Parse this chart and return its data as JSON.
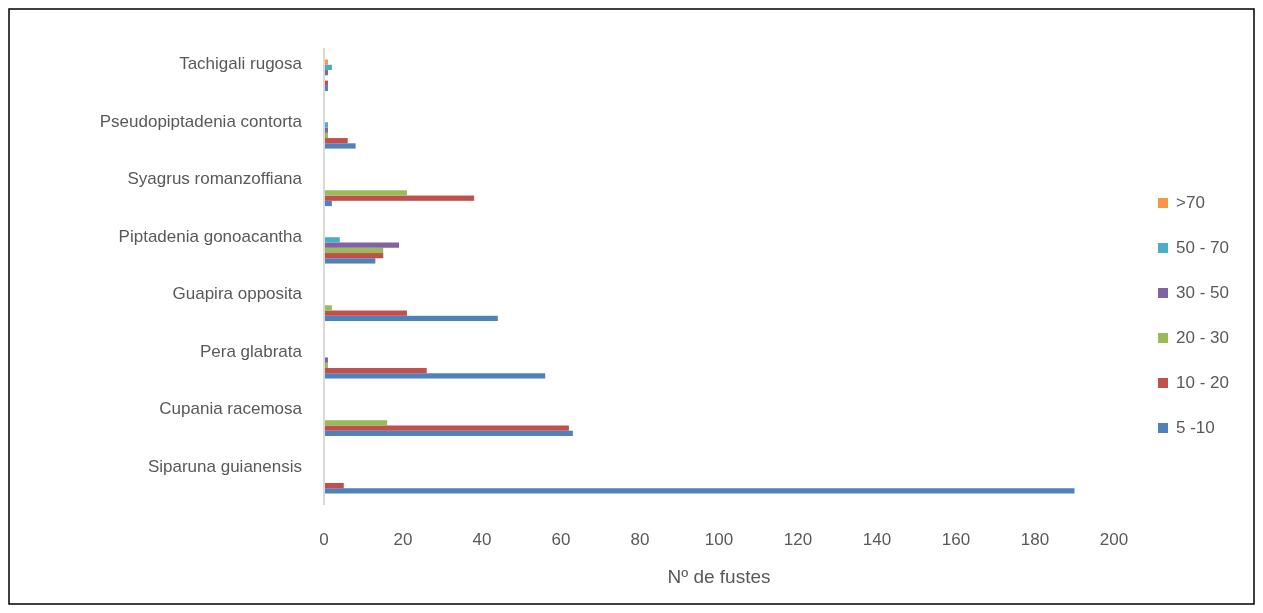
{
  "chart_data": {
    "type": "bar",
    "orientation": "horizontal",
    "xlabel": "Nº de fustes",
    "categories": [
      "Tachigali rugosa",
      "Pseudopiptadenia contorta",
      "Syagrus romanzoffiana",
      "Piptadenia gonoacantha",
      "Guapira opposita",
      "Pera glabrata",
      "Cupania racemosa",
      "Siparuna guianensis"
    ],
    "series": [
      {
        "name": "5 -10",
        "color": "#4f81bd",
        "values": [
          1,
          8,
          2,
          13,
          44,
          56,
          63,
          190
        ]
      },
      {
        "name": "10 - 20",
        "color": "#c0504d",
        "values": [
          1,
          6,
          38,
          15,
          21,
          26,
          62,
          5
        ]
      },
      {
        "name": "20 - 30",
        "color": "#9bbb59",
        "values": [
          0,
          1,
          21,
          15,
          2,
          1,
          16,
          0
        ]
      },
      {
        "name": "30 - 50",
        "color": "#8064a2",
        "values": [
          1,
          1,
          0,
          19,
          0,
          1,
          0,
          0
        ]
      },
      {
        "name": "50 - 70",
        "color": "#4bacc6",
        "values": [
          2,
          1,
          0,
          4,
          0,
          0,
          0,
          0
        ]
      },
      {
        "name": ">70",
        "color": "#f79646",
        "values": [
          1,
          0,
          0,
          0,
          0,
          0,
          0,
          0
        ]
      }
    ],
    "xlim": [
      0,
      200
    ],
    "xticks": [
      0,
      20,
      40,
      60,
      80,
      100,
      120,
      140,
      160,
      180,
      200
    ],
    "grid": false,
    "legend": "right"
  }
}
